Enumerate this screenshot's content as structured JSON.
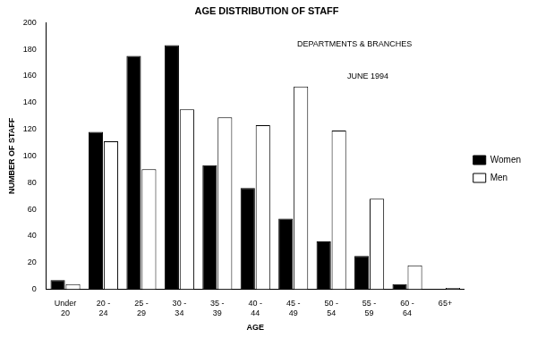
{
  "chart_data": {
    "type": "bar",
    "title": "AGE DISTRIBUTION OF STAFF",
    "annotations": [
      "DEPARTMENTS & BRANCHES",
      "JUNE 1994"
    ],
    "x_label": "AGE",
    "y_label": "NUMBER OF STAFF",
    "categories": [
      [
        "Under",
        "20"
      ],
      [
        "20 -",
        "24"
      ],
      [
        "25 -",
        "29"
      ],
      [
        "30 -",
        "34"
      ],
      [
        "35 -",
        "39"
      ],
      [
        "40 -",
        "44"
      ],
      [
        "45 -",
        "49"
      ],
      [
        "50 -",
        "54"
      ],
      [
        "55 -",
        "59"
      ],
      [
        "60 -",
        "64"
      ],
      [
        "65+"
      ]
    ],
    "series": [
      {
        "name": "Women",
        "color": "#000000",
        "values": [
          7,
          118,
          175,
          183,
          93,
          76,
          53,
          36,
          25,
          4,
          0
        ]
      },
      {
        "name": "Men",
        "color": "#ffffff",
        "values": [
          4,
          111,
          90,
          135,
          129,
          123,
          152,
          119,
          68,
          18,
          1
        ]
      }
    ],
    "ylim": [
      0,
      200
    ],
    "yticks": [
      0,
      20,
      40,
      60,
      80,
      100,
      120,
      140,
      160,
      180,
      200
    ],
    "grid": false,
    "legend": "right"
  }
}
